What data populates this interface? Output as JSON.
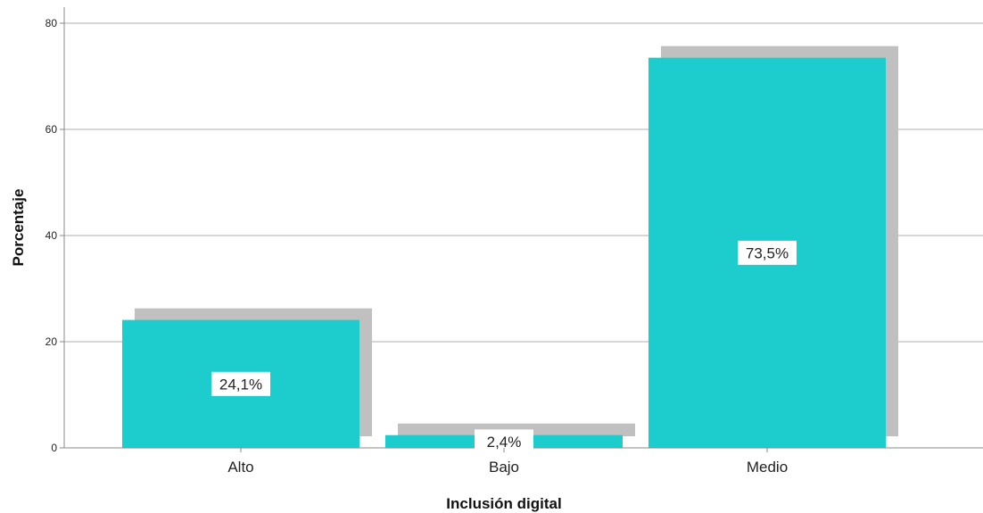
{
  "chart_data": {
    "type": "bar",
    "categories": [
      "Alto",
      "Bajo",
      "Medio"
    ],
    "values": [
      24.1,
      2.4,
      73.5
    ],
    "data_labels": [
      "24,1%",
      "2,4%",
      "73,5%"
    ],
    "xlabel": "Inclusión digital",
    "ylabel": "Porcentaje",
    "ylim": [
      0,
      80
    ],
    "yticks": [
      "0",
      "20",
      "40",
      "60",
      "80"
    ],
    "grid": true,
    "bar_color": "#1dcccc",
    "shadow_color": "#c0c0c0",
    "grid_color": "#c8c8c8"
  }
}
